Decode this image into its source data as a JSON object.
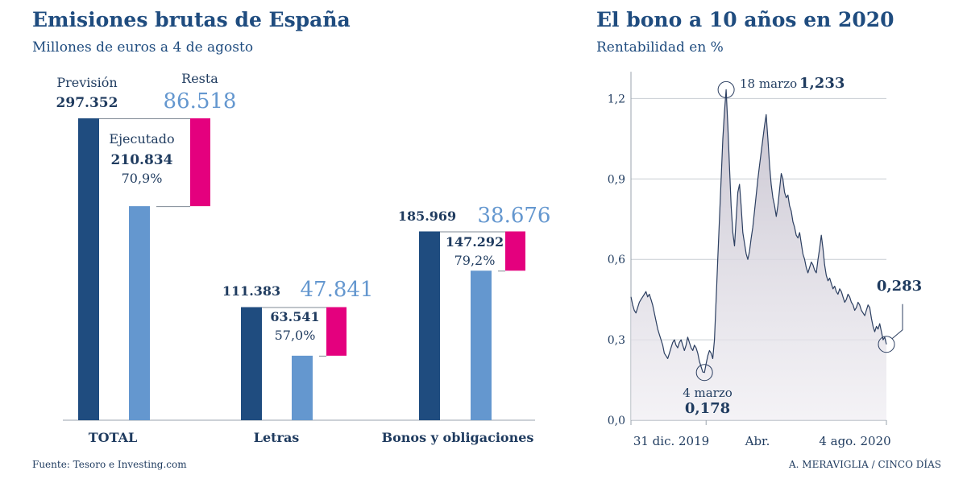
{
  "left_panel": {
    "title": "Emisiones brutas de España",
    "subtitle": "Millones de euros a 4 de agosto",
    "source": "Fuente: Tesoro e Investing.com"
  },
  "right_panel": {
    "title": "El bono a 10 años en 2020",
    "subtitle": "Rentabilidad en %",
    "credit": "A. MERAVIGLIA / CINCO DÍAS"
  },
  "chart_data": [
    {
      "type": "bar",
      "title": "Emisiones brutas de España",
      "subtitle": "Millones de euros a 4 de agosto",
      "categories": [
        "TOTAL",
        "Letras",
        "Bonos y obligaciones"
      ],
      "series": [
        {
          "name": "Previsión",
          "values": [
            297352,
            111383,
            185969
          ],
          "labels": [
            "297.352",
            "111.383",
            "185.969"
          ],
          "color": "#1f4c7f"
        },
        {
          "name": "Ejecutado",
          "values": [
            210834,
            63541,
            147292
          ],
          "labels": [
            "210.834",
            "63.541",
            "147.292"
          ],
          "percent_labels": [
            "70,9%",
            "57,0%",
            "79,2%"
          ],
          "color": "#6497cf"
        },
        {
          "name": "Resta",
          "values": [
            86518,
            47841,
            38676
          ],
          "labels": [
            "86.518",
            "47.841",
            "38.676"
          ],
          "color": "#e4007e"
        }
      ],
      "annotations": {
        "prevision": "Previsión",
        "ejecutado": "Ejecutado",
        "resta": "Resta"
      },
      "ylim": [
        0,
        297352
      ]
    },
    {
      "type": "area",
      "title": "El bono a 10 años en 2020",
      "ylabel": "Rentabilidad en %",
      "ylim": [
        0,
        1.3
      ],
      "yticks": [
        0,
        0.3,
        0.6,
        0.9,
        1.2
      ],
      "ytick_labels": [
        "0,0",
        "0,3",
        "0,6",
        "0,9",
        "1,2"
      ],
      "xlim": [
        0,
        153
      ],
      "xticks": [
        0,
        45,
        153
      ],
      "xtick_labels": [
        "31 dic. 2019",
        "Abr.",
        "4 ago. 2020"
      ],
      "x": [
        0,
        1,
        2,
        3,
        4,
        5,
        6,
        7,
        8,
        9,
        10,
        11,
        12,
        13,
        14,
        15,
        16,
        17,
        18,
        19,
        20,
        21,
        22,
        23,
        24,
        25,
        26,
        27,
        28,
        29,
        30,
        31,
        32,
        33,
        34,
        35,
        36,
        37,
        38,
        39,
        40,
        41,
        42,
        43,
        44,
        45,
        46,
        47,
        48,
        49,
        50,
        51,
        52,
        53,
        54,
        55,
        56,
        57,
        58,
        59,
        60,
        61,
        62,
        63,
        64,
        65,
        66,
        67,
        68,
        69,
        70,
        71,
        72,
        73,
        74,
        75,
        76,
        77,
        78,
        79,
        80,
        81,
        82,
        83,
        84,
        85,
        86,
        87,
        88,
        89,
        90,
        91,
        92,
        93,
        94,
        95,
        96,
        97,
        98,
        99,
        100,
        101,
        102,
        103,
        104,
        105,
        106,
        107,
        108,
        109,
        110,
        111,
        112,
        113,
        114,
        115,
        116,
        117,
        118,
        119,
        120,
        121,
        122,
        123,
        124,
        125,
        126,
        127,
        128,
        129,
        130,
        131,
        132,
        133,
        134,
        135,
        136,
        137,
        138,
        139,
        140,
        141,
        142,
        143,
        144,
        145,
        146,
        147,
        148,
        149,
        150,
        151,
        152,
        153
      ],
      "values": [
        0.46,
        0.43,
        0.41,
        0.4,
        0.42,
        0.44,
        0.45,
        0.46,
        0.47,
        0.48,
        0.46,
        0.47,
        0.45,
        0.43,
        0.4,
        0.37,
        0.34,
        0.32,
        0.3,
        0.28,
        0.25,
        0.24,
        0.23,
        0.25,
        0.27,
        0.29,
        0.3,
        0.28,
        0.27,
        0.29,
        0.3,
        0.28,
        0.26,
        0.28,
        0.31,
        0.29,
        0.27,
        0.26,
        0.28,
        0.27,
        0.25,
        0.22,
        0.2,
        0.18,
        0.178,
        0.21,
        0.24,
        0.26,
        0.25,
        0.23,
        0.3,
        0.45,
        0.6,
        0.75,
        0.9,
        1.05,
        1.15,
        1.233,
        1.1,
        0.95,
        0.8,
        0.7,
        0.65,
        0.75,
        0.85,
        0.88,
        0.8,
        0.7,
        0.66,
        0.62,
        0.6,
        0.63,
        0.68,
        0.72,
        0.78,
        0.84,
        0.9,
        0.95,
        1.0,
        1.05,
        1.1,
        1.14,
        1.05,
        0.95,
        0.88,
        0.83,
        0.8,
        0.76,
        0.8,
        0.86,
        0.92,
        0.9,
        0.85,
        0.83,
        0.84,
        0.8,
        0.78,
        0.74,
        0.72,
        0.69,
        0.68,
        0.7,
        0.66,
        0.62,
        0.6,
        0.57,
        0.55,
        0.57,
        0.59,
        0.58,
        0.56,
        0.55,
        0.6,
        0.64,
        0.69,
        0.64,
        0.58,
        0.54,
        0.52,
        0.53,
        0.51,
        0.49,
        0.5,
        0.48,
        0.47,
        0.49,
        0.48,
        0.46,
        0.44,
        0.45,
        0.47,
        0.46,
        0.44,
        0.43,
        0.41,
        0.42,
        0.44,
        0.43,
        0.41,
        0.4,
        0.39,
        0.41,
        0.43,
        0.42,
        0.38,
        0.35,
        0.33,
        0.35,
        0.34,
        0.36,
        0.33,
        0.3,
        0.31,
        0.283
      ],
      "annotations": [
        {
          "label": "18 marzo",
          "value_label": "1,233",
          "x": 57,
          "y": 1.233
        },
        {
          "label": "4 marzo",
          "value_label": "0,178",
          "x": 44,
          "y": 0.178
        },
        {
          "label": "",
          "value_label": "0,283",
          "x": 153,
          "y": 0.283
        }
      ]
    }
  ]
}
